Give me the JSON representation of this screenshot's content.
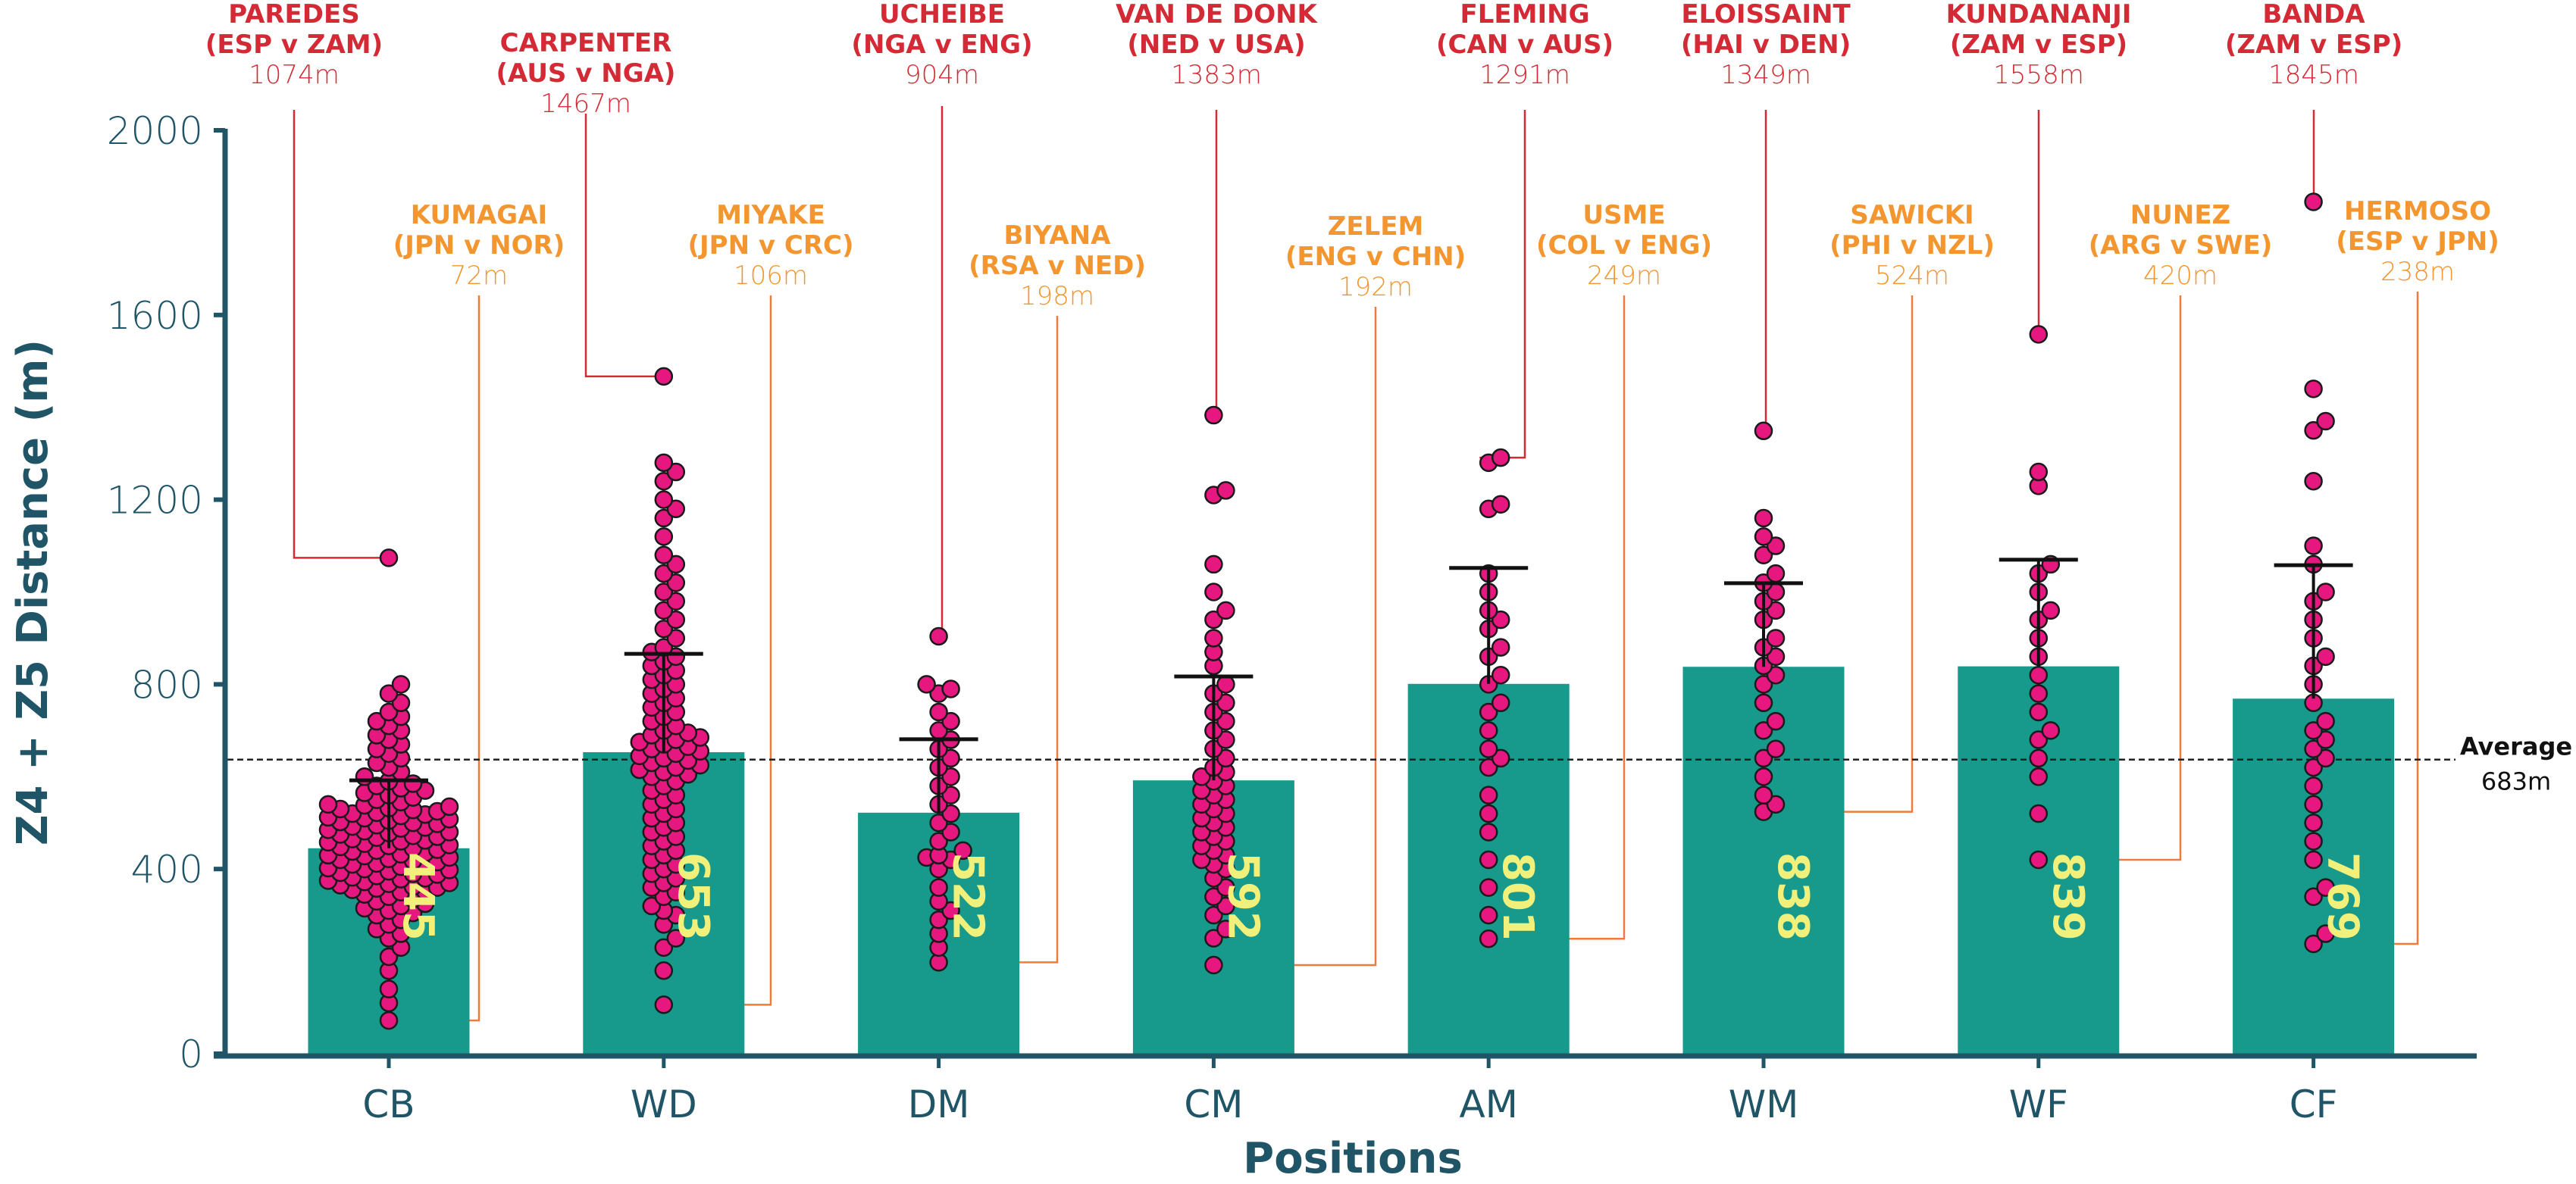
{
  "chart_data": {
    "type": "bar",
    "subtype": "bar-with-swarm-and-error-bars",
    "title": "",
    "xlabel": "Positions",
    "ylabel": "Z4 + Z5 Distance (m)",
    "ylim": [
      0,
      2000
    ],
    "yticks": [
      0,
      400,
      800,
      1200,
      1600,
      2000
    ],
    "grid": false,
    "categories": [
      "CB",
      "WD",
      "DM",
      "CM",
      "AM",
      "WM",
      "WF",
      "CF"
    ],
    "values": [
      445,
      653,
      522,
      592,
      801,
      838,
      839,
      769
    ],
    "bar_labels": [
      "445",
      "653",
      "522",
      "592",
      "801",
      "838",
      "839",
      "769"
    ],
    "error_upper": [
      592,
      866,
      681,
      817,
      1052,
      1019,
      1070,
      1058
    ],
    "average": {
      "title": "Average",
      "value": 683,
      "label": "683m"
    },
    "colors": {
      "bar": "#17998b",
      "bar_label": "#f0f07a",
      "point_fill": "#e6177f",
      "point_stroke": "#1a1a1a",
      "axis": "#1f5566",
      "max_annotation": "#d42a35",
      "min_annotation": "#f3962f",
      "min_leader": "#f07a3a",
      "average_line": "#222222"
    },
    "annotations_max": [
      {
        "category": "CB",
        "name": "PAREDES",
        "match": "(ESP v ZAM)",
        "value": 1074,
        "label": "1074m"
      },
      {
        "category": "WD",
        "name": "CARPENTER",
        "match": "(AUS v NGA)",
        "value": 1467,
        "label": "1467m"
      },
      {
        "category": "DM",
        "name": "UCHEIBE",
        "match": "(NGA v ENG)",
        "value": 904,
        "label": "904m"
      },
      {
        "category": "CM",
        "name": "VAN DE DONK",
        "match": "(NED v USA)",
        "value": 1383,
        "label": "1383m"
      },
      {
        "category": "AM",
        "name": "FLEMING",
        "match": "(CAN v AUS)",
        "value": 1291,
        "label": "1291m"
      },
      {
        "category": "WM",
        "name": "ELOISSAINT",
        "match": "(HAI v DEN)",
        "value": 1349,
        "label": "1349m"
      },
      {
        "category": "WF",
        "name": "KUNDANANJI",
        "match": "(ZAM v ESP)",
        "value": 1558,
        "label": "1558m"
      },
      {
        "category": "CF",
        "name": "BANDA",
        "match": "(ZAM v ESP)",
        "value": 1845,
        "label": "1845m"
      }
    ],
    "annotations_min": [
      {
        "category": "CB",
        "name": "KUMAGAI",
        "match": "(JPN v NOR)",
        "value": 72,
        "label": "72m"
      },
      {
        "category": "WD",
        "name": "MIYAKE",
        "match": "(JPN v CRC)",
        "value": 106,
        "label": "106m"
      },
      {
        "category": "DM",
        "name": "BIYANA",
        "match": "(RSA v NED)",
        "value": 198,
        "label": "198m"
      },
      {
        "category": "CM",
        "name": "ZELEM",
        "match": "(ENG v CHN)",
        "value": 192,
        "label": "192m"
      },
      {
        "category": "AM",
        "name": "USME",
        "match": "(COL v ENG)",
        "value": 249,
        "label": "249m"
      },
      {
        "category": "WM",
        "name": "SAWICKI",
        "match": "(PHI v NZL)",
        "value": 524,
        "label": "524m"
      },
      {
        "category": "WF",
        "name": "NUNEZ",
        "match": "(ARG v SWE)",
        "value": 420,
        "label": "420m"
      },
      {
        "category": "CF",
        "name": "HERMOSO",
        "match": "(ESP v JPN)",
        "value": 238,
        "label": "238m"
      }
    ],
    "points": {
      "CB": [
        72,
        110,
        140,
        180,
        210,
        230,
        250,
        260,
        270,
        280,
        290,
        300,
        305,
        310,
        315,
        320,
        325,
        330,
        335,
        340,
        345,
        350,
        352,
        355,
        358,
        360,
        362,
        365,
        368,
        370,
        372,
        375,
        378,
        380,
        382,
        385,
        388,
        390,
        392,
        395,
        398,
        400,
        402,
        405,
        408,
        410,
        412,
        415,
        418,
        420,
        422,
        425,
        428,
        430,
        432,
        435,
        438,
        440,
        442,
        445,
        448,
        450,
        452,
        455,
        458,
        460,
        462,
        465,
        468,
        470,
        472,
        475,
        478,
        480,
        482,
        485,
        488,
        490,
        492,
        495,
        498,
        500,
        502,
        505,
        508,
        510,
        512,
        515,
        518,
        520,
        522,
        525,
        528,
        530,
        532,
        535,
        538,
        540,
        545,
        550,
        555,
        560,
        565,
        570,
        575,
        580,
        585,
        590,
        600,
        610,
        620,
        630,
        640,
        650,
        660,
        670,
        680,
        690,
        700,
        710,
        720,
        730,
        740,
        760,
        780,
        800,
        1074
      ],
      "WD": [
        106,
        180,
        230,
        250,
        280,
        300,
        310,
        320,
        340,
        350,
        360,
        370,
        380,
        390,
        400,
        410,
        420,
        430,
        440,
        450,
        460,
        470,
        480,
        490,
        500,
        510,
        520,
        530,
        540,
        550,
        560,
        570,
        580,
        590,
        600,
        605,
        610,
        615,
        620,
        625,
        630,
        635,
        640,
        645,
        650,
        655,
        660,
        665,
        670,
        675,
        680,
        685,
        690,
        695,
        700,
        710,
        720,
        730,
        740,
        750,
        760,
        770,
        780,
        790,
        800,
        810,
        820,
        830,
        840,
        850,
        860,
        870,
        880,
        900,
        920,
        940,
        960,
        980,
        1000,
        1020,
        1040,
        1060,
        1080,
        1120,
        1160,
        1180,
        1200,
        1240,
        1260,
        1280,
        1467
      ],
      "DM": [
        198,
        230,
        260,
        290,
        310,
        330,
        360,
        400,
        420,
        425,
        430,
        440,
        460,
        480,
        500,
        520,
        540,
        560,
        580,
        600,
        620,
        640,
        660,
        680,
        700,
        720,
        740,
        780,
        790,
        800,
        904
      ],
      "CM": [
        192,
        250,
        270,
        300,
        320,
        340,
        360,
        380,
        400,
        410,
        420,
        430,
        440,
        450,
        460,
        470,
        480,
        490,
        500,
        510,
        520,
        530,
        540,
        550,
        560,
        570,
        580,
        590,
        600,
        610,
        620,
        640,
        660,
        680,
        700,
        720,
        740,
        760,
        780,
        800,
        840,
        870,
        900,
        940,
        960,
        1000,
        1060,
        1210,
        1220,
        1383
      ],
      "AM": [
        249,
        300,
        360,
        420,
        480,
        520,
        560,
        620,
        640,
        660,
        700,
        740,
        760,
        800,
        820,
        860,
        880,
        920,
        940,
        960,
        1000,
        1040,
        1180,
        1190,
        1280,
        1291
      ],
      "WM": [
        524,
        540,
        560,
        600,
        640,
        660,
        700,
        720,
        760,
        800,
        820,
        840,
        860,
        880,
        900,
        940,
        960,
        980,
        1000,
        1020,
        1040,
        1080,
        1100,
        1120,
        1160,
        1349
      ],
      "WF": [
        420,
        520,
        600,
        640,
        680,
        700,
        740,
        780,
        820,
        860,
        900,
        940,
        960,
        1000,
        1040,
        1060,
        1230,
        1260,
        1558
      ],
      "CF": [
        238,
        260,
        340,
        360,
        420,
        460,
        500,
        540,
        580,
        620,
        640,
        660,
        680,
        700,
        720,
        760,
        800,
        840,
        860,
        900,
        940,
        980,
        1000,
        1060,
        1100,
        1240,
        1350,
        1370,
        1440,
        1845
      ]
    }
  }
}
